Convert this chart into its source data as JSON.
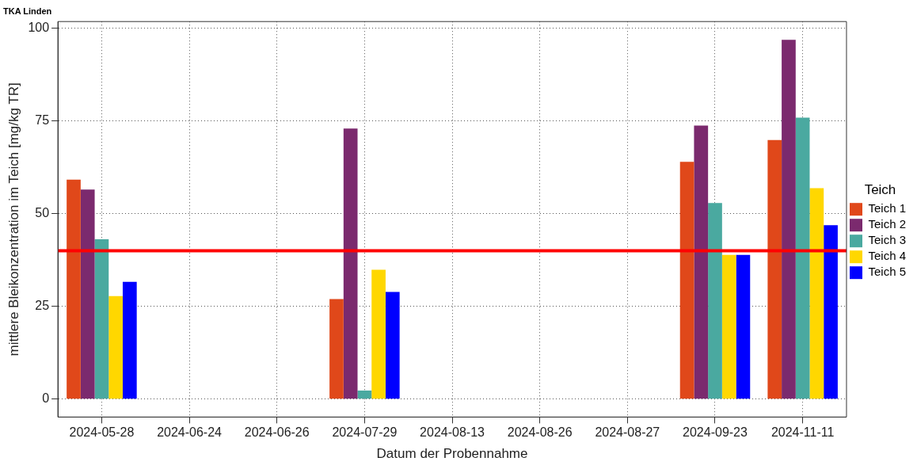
{
  "chart_data": {
    "type": "bar",
    "title": "TKA Linden",
    "xlabel": "Datum der Probennahme",
    "ylabel": "mittlere Bleikonzentration im Teich [mg/kg TR]",
    "legend_title": "Teich",
    "categories": [
      "2024-05-28",
      "2024-06-24",
      "2024-06-26",
      "2024-07-29",
      "2024-08-13",
      "2024-08-26",
      "2024-08-27",
      "2024-09-23",
      "2024-11-11"
    ],
    "series": [
      {
        "name": "Teich 1",
        "color": "#e0481a",
        "values": [
          59.2,
          null,
          null,
          27.0,
          null,
          null,
          null,
          64.0,
          69.9
        ]
      },
      {
        "name": "Teich 2",
        "color": "#7b2a6e",
        "values": [
          56.5,
          null,
          null,
          73.0,
          null,
          null,
          null,
          73.8,
          96.9
        ]
      },
      {
        "name": "Teich 3",
        "color": "#4aa9a0",
        "values": [
          43.1,
          null,
          null,
          2.3,
          null,
          null,
          null,
          52.9,
          75.9
        ]
      },
      {
        "name": "Teich 4",
        "color": "#ffd700",
        "values": [
          27.8,
          null,
          null,
          34.9,
          null,
          null,
          null,
          38.9,
          56.9
        ]
      },
      {
        "name": "Teich 5",
        "color": "#0000ff",
        "values": [
          31.6,
          null,
          null,
          28.9,
          null,
          null,
          null,
          38.9,
          46.9
        ]
      }
    ],
    "ylim": [
      -4.85,
      101.85
    ],
    "yticks": [
      0,
      25,
      50,
      75,
      100
    ],
    "grid": true,
    "legend": "right",
    "ref_lines": [
      {
        "axis": "y",
        "value": 40,
        "color": "#ff0000",
        "line_style": "solid"
      }
    ]
  }
}
